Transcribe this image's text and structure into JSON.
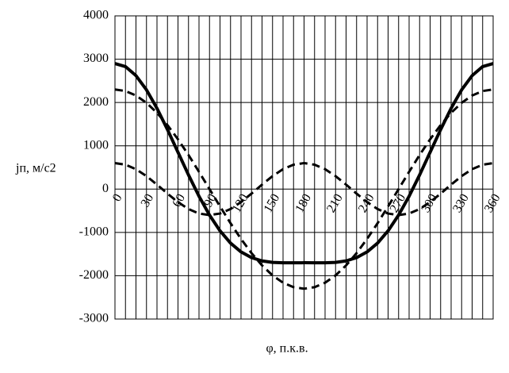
{
  "chart_data": {
    "type": "line",
    "y_label": "jп, м/с2",
    "x_label": "φ, п.к.в.",
    "x": [
      0,
      10,
      20,
      30,
      40,
      50,
      60,
      70,
      80,
      90,
      100,
      110,
      120,
      130,
      140,
      150,
      160,
      170,
      180,
      190,
      200,
      210,
      220,
      230,
      240,
      250,
      260,
      270,
      280,
      290,
      300,
      310,
      320,
      330,
      340,
      350,
      360
    ],
    "series": [
      {
        "color": "#000000",
        "dashed": false,
        "values": [
          2900,
          2829,
          2621,
          2292,
          1866,
          1374,
          850,
          327,
          -165,
          -600,
          -963,
          -1247,
          -1450,
          -1582,
          -1658,
          -1692,
          -1701,
          -1701,
          -1700,
          -1701,
          -1701,
          -1692,
          -1658,
          -1582,
          -1450,
          -1247,
          -963,
          -600,
          -165,
          327,
          850,
          1374,
          1866,
          2292,
          2621,
          2829,
          2900
        ]
      },
      {
        "color": "#000000",
        "dashed": true,
        "values": [
          2300,
          2265,
          2161,
          1992,
          1762,
          1478,
          1150,
          787,
          399,
          0,
          -399,
          -787,
          -1150,
          -1478,
          -1762,
          -1992,
          -2161,
          -2265,
          -2300,
          -2265,
          -2161,
          -1992,
          -1762,
          -1478,
          -1150,
          -787,
          -399,
          0,
          399,
          787,
          1150,
          1478,
          1762,
          1992,
          2161,
          2265,
          2300
        ]
      },
      {
        "color": "#000000",
        "dashed": true,
        "values": [
          600,
          564,
          460,
          300,
          104,
          -104,
          -300,
          -460,
          -564,
          -600,
          -564,
          -460,
          -300,
          -104,
          104,
          300,
          460,
          564,
          600,
          564,
          460,
          300,
          104,
          -104,
          -300,
          -460,
          -564,
          -600,
          -564,
          -460,
          -300,
          -104,
          104,
          300,
          460,
          564,
          600
        ]
      }
    ],
    "xlim": [
      0,
      360
    ],
    "xticks": [
      0,
      30,
      60,
      90,
      120,
      150,
      180,
      210,
      240,
      270,
      300,
      330,
      360
    ],
    "x_minor_grid": [
      0,
      10,
      20,
      30,
      40,
      50,
      60,
      70,
      80,
      90,
      100,
      110,
      120,
      130,
      140,
      150,
      160,
      170,
      180,
      190,
      200,
      210,
      220,
      230,
      240,
      250,
      260,
      270,
      280,
      290,
      300,
      310,
      320,
      330,
      340,
      350,
      360
    ],
    "ylim": [
      -3000,
      4000
    ],
    "yticks": [
      -3000,
      -2000,
      -1000,
      0,
      1000,
      2000,
      3000,
      4000
    ],
    "grid": true
  }
}
